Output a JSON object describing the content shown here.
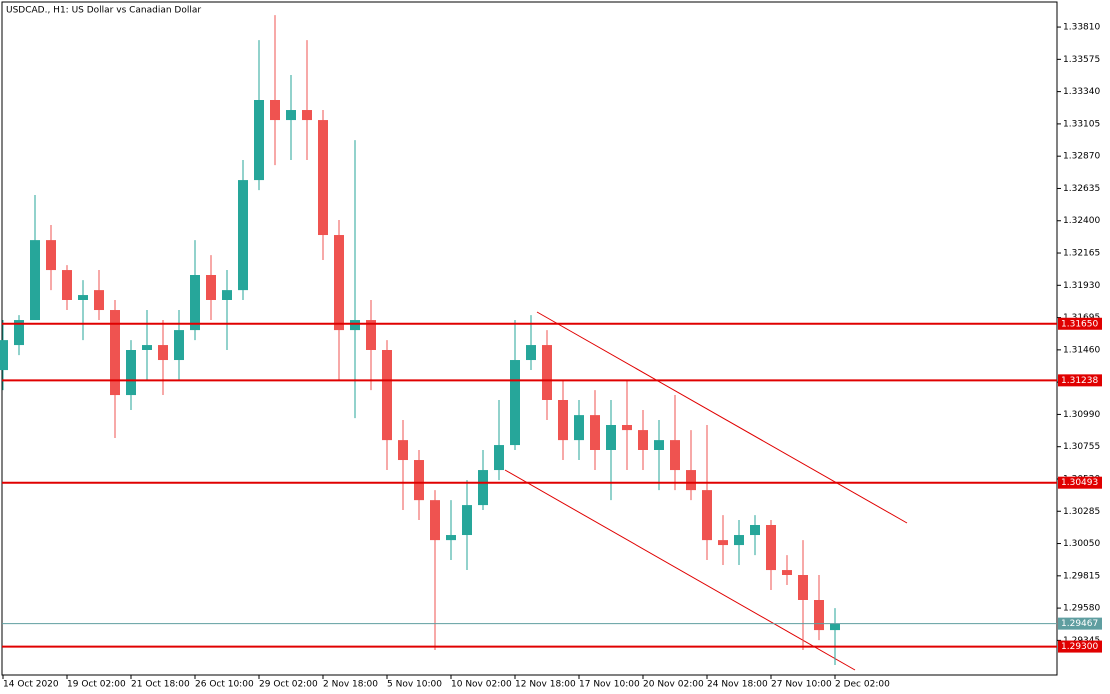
{
  "chart_data": {
    "type": "candlestick",
    "title": "USDCAD., H1:  US Dollar vs Canadian Dollar",
    "categories": [
      "14 Oct 2020",
      null,
      null,
      null,
      "19 Oct 02:00",
      null,
      null,
      null,
      "21 Oct 18:00",
      null,
      null,
      null,
      "26 Oct 10:00",
      null,
      null,
      null,
      "29 Oct 02:00",
      null,
      null,
      null,
      "2 Nov 18:00",
      null,
      null,
      null,
      "5 Nov 10:00",
      null,
      null,
      null,
      "10 Nov 02:00",
      null,
      null,
      null,
      "12 Nov 18:00",
      null,
      null,
      null,
      "17 Nov 10:00",
      null,
      null,
      null,
      "20 Nov 02:00",
      null,
      null,
      null,
      "24 Nov 18:00",
      null,
      null,
      null,
      "27 Nov 10:00",
      null,
      null,
      null,
      "2 Dec 02:00"
    ],
    "open": [
      1.31313,
      1.31495,
      1.31677,
      1.32259,
      1.32041,
      1.31823,
      1.31895,
      1.3175,
      1.31131,
      1.31459,
      1.31495,
      1.31386,
      1.31604,
      1.32005,
      1.31823,
      1.31895,
      1.32696,
      1.33279,
      1.33133,
      1.33206,
      1.33133,
      1.32296,
      1.31604,
      1.31677,
      1.31459,
      1.30803,
      1.30658,
      1.30366,
      1.30075,
      1.30112,
      1.3033,
      1.30585,
      1.30767,
      1.31386,
      1.31495,
      1.31095,
      1.30803,
      1.30985,
      1.30731,
      1.30913,
      1.30876,
      1.30731,
      1.30803,
      1.30585,
      1.30439,
      1.30075,
      1.30039,
      1.30112,
      1.30185,
      1.29857,
      1.29821,
      1.29639,
      1.2942
    ],
    "high": [
      1.31677,
      1.31713,
      1.32587,
      1.32369,
      1.32077,
      1.31968,
      1.32041,
      1.31823,
      1.31531,
      1.3175,
      1.31677,
      1.3175,
      1.32259,
      1.3215,
      1.32041,
      1.32842,
      1.33715,
      1.33897,
      1.33461,
      1.33715,
      1.33206,
      1.32405,
      1.32987,
      1.31823,
      1.31531,
      1.30949,
      1.30731,
      1.30439,
      1.30366,
      1.30512,
      1.30731,
      1.31095,
      1.31677,
      1.31713,
      1.31604,
      1.3124,
      1.31095,
      1.31167,
      1.31095,
      1.3124,
      1.31022,
      1.30949,
      1.31131,
      1.30876,
      1.30913,
      1.30257,
      1.30221,
      1.30257,
      1.30221,
      1.29966,
      1.30075,
      1.29821,
      1.2958
    ],
    "low": [
      1.31167,
      1.31422,
      1.31677,
      1.31895,
      1.3175,
      1.31531,
      1.31677,
      1.30818,
      1.31022,
      1.3124,
      1.31131,
      1.3124,
      1.31531,
      1.31677,
      1.31459,
      1.31823,
      1.32623,
      1.32805,
      1.32842,
      1.32842,
      1.32114,
      1.3124,
      1.30963,
      1.31167,
      1.30585,
      1.30294,
      1.30221,
      1.29275,
      1.2993,
      1.29857,
      1.30294,
      1.30512,
      1.30731,
      1.31313,
      1.30949,
      1.30658,
      1.30658,
      1.30585,
      1.30366,
      1.30585,
      1.30585,
      1.30439,
      1.30439,
      1.30366,
      1.2993,
      1.29894,
      1.29894,
      1.29966,
      1.29712,
      1.29748,
      1.29275,
      1.29347,
      1.29166
    ],
    "close": [
      1.31531,
      1.31677,
      1.32259,
      1.32041,
      1.31823,
      1.31859,
      1.3175,
      1.31131,
      1.31459,
      1.31495,
      1.31386,
      1.31604,
      1.32005,
      1.31823,
      1.31895,
      1.32696,
      1.33279,
      1.33133,
      1.33206,
      1.33133,
      1.32296,
      1.31604,
      1.31677,
      1.31459,
      1.30803,
      1.30658,
      1.30366,
      1.30075,
      1.30112,
      1.3033,
      1.30585,
      1.30767,
      1.31386,
      1.31495,
      1.31095,
      1.30803,
      1.30985,
      1.30731,
      1.30913,
      1.30876,
      1.30731,
      1.30803,
      1.30585,
      1.30439,
      1.30075,
      1.30039,
      1.30112,
      1.30185,
      1.29857,
      1.29821,
      1.29639,
      1.2942,
      1.29467
    ],
    "up_color": "#26a69a",
    "down_color": "#ef5350",
    "ylim": [
      1.29093,
      1.34007
    ],
    "yticks": [
      {
        "value": 1.3381,
        "label": "1.33810"
      },
      {
        "value": 1.33575,
        "label": "1.33575"
      },
      {
        "value": 1.3334,
        "label": "1.33340"
      },
      {
        "value": 1.33105,
        "label": "1.33105"
      },
      {
        "value": 1.3287,
        "label": "1.32870"
      },
      {
        "value": 1.32635,
        "label": "1.32635"
      },
      {
        "value": 1.324,
        "label": "1.32400"
      },
      {
        "value": 1.32165,
        "label": "1.32165"
      },
      {
        "value": 1.3193,
        "label": "1.31930"
      },
      {
        "value": 1.31695,
        "label": "1.31695"
      },
      {
        "value": 1.3146,
        "label": "1.31460"
      },
      {
        "value": 1.31225,
        "label": "1.31225"
      },
      {
        "value": 1.3099,
        "label": "1.30990"
      },
      {
        "value": 1.30755,
        "label": "1.30755"
      },
      {
        "value": 1.3052,
        "label": "1.30520"
      },
      {
        "value": 1.30285,
        "label": "1.30285"
      },
      {
        "value": 1.3005,
        "label": "1.30050"
      },
      {
        "value": 1.29815,
        "label": "1.29815"
      },
      {
        "value": 1.2958,
        "label": "1.29580"
      },
      {
        "value": 1.29345,
        "label": "1.29345"
      }
    ],
    "levels": [
      {
        "value": 1.3165,
        "label": "1.31650"
      },
      {
        "value": 1.31238,
        "label": "1.31238"
      },
      {
        "value": 1.30493,
        "label": "1.30493"
      },
      {
        "value": 1.293,
        "label": "1.29300"
      }
    ],
    "level_color": "#e00000",
    "current_price": {
      "value": 1.29467,
      "label": "1.29467"
    },
    "current_color": "#5f9ea0",
    "grid": false
  }
}
